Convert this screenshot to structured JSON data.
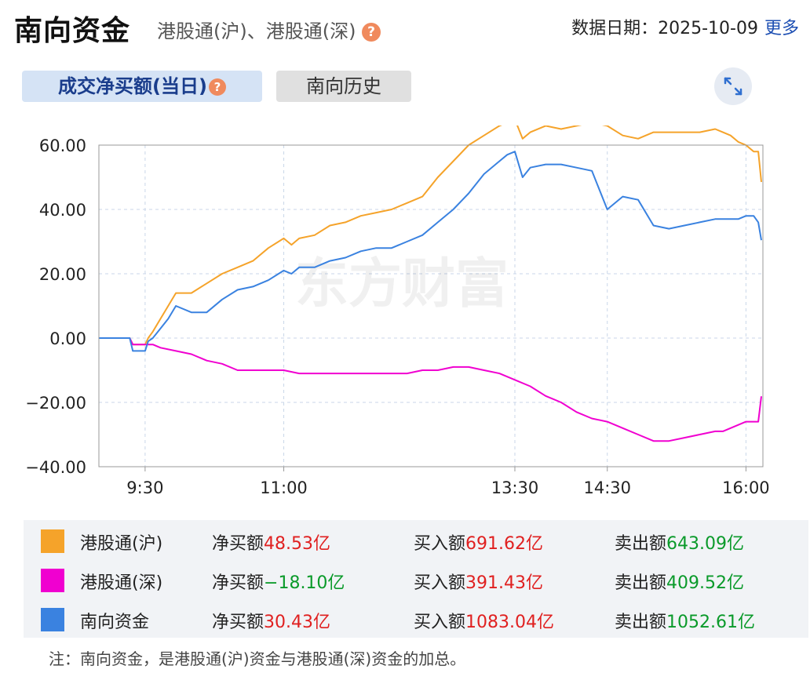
{
  "header": {
    "title": "南向资金",
    "subtitle": "港股通(沪)、港股通(深)",
    "date_label": "数据日期：",
    "date_value": "2025-10-09",
    "more": "更多"
  },
  "tabs": [
    {
      "label": "成交净买额(当日)",
      "active": true
    },
    {
      "label": "南向历史",
      "active": false
    }
  ],
  "icons": {
    "help": "?",
    "expand": "expand-icon"
  },
  "chart_data": {
    "type": "line",
    "watermark": "东方财富",
    "ylim": [
      -40,
      60
    ],
    "yticks": [
      "60.00",
      "40.00",
      "20.00",
      "0.00",
      "−20.00",
      "−40.00"
    ],
    "ytick_values": [
      60,
      40,
      20,
      0,
      -20,
      -40
    ],
    "xtick_labels": [
      "9:30",
      "11:00",
      "13:30",
      "14:30",
      "16:00"
    ],
    "xtick_minutes": [
      570,
      660,
      810,
      870,
      960
    ],
    "xlim_minutes": [
      540,
      971
    ],
    "grid": true,
    "series": [
      {
        "name": "港股通(沪)",
        "color": "#f5a32a",
        "x": [
          540,
          560,
          562,
          570,
          572,
          575,
          580,
          585,
          590,
          600,
          610,
          620,
          630,
          640,
          650,
          660,
          665,
          670,
          680,
          690,
          700,
          710,
          720,
          730,
          740,
          750,
          760,
          770,
          780,
          790,
          800,
          805,
          810,
          815,
          820,
          830,
          840,
          850,
          860,
          870,
          880,
          890,
          900,
          910,
          920,
          930,
          940,
          945,
          950,
          955,
          960,
          965,
          968,
          970
        ],
        "y": [
          0,
          0,
          -2,
          -2,
          0,
          2,
          6,
          10,
          14,
          14,
          17,
          20,
          22,
          24,
          28,
          31,
          29,
          31,
          32,
          35,
          36,
          38,
          39,
          40,
          42,
          44,
          50,
          55,
          60,
          63,
          66,
          67,
          68,
          62,
          64,
          66,
          65,
          66,
          67,
          66,
          63,
          62,
          64,
          64,
          64,
          64,
          65,
          64,
          63,
          61,
          60,
          58,
          58,
          48.53
        ]
      },
      {
        "name": "港股通(深)",
        "color": "#f000d0",
        "x": [
          540,
          560,
          562,
          570,
          575,
          580,
          590,
          600,
          610,
          620,
          630,
          640,
          650,
          660,
          670,
          680,
          690,
          700,
          710,
          720,
          730,
          740,
          750,
          760,
          770,
          780,
          790,
          800,
          810,
          820,
          830,
          840,
          850,
          860,
          870,
          880,
          890,
          900,
          910,
          920,
          930,
          940,
          945,
          950,
          955,
          960,
          965,
          968,
          970
        ],
        "y": [
          0,
          0,
          -2,
          -2,
          -2,
          -3,
          -4,
          -5,
          -7,
          -8,
          -10,
          -10,
          -10,
          -10,
          -11,
          -11,
          -11,
          -11,
          -11,
          -11,
          -11,
          -11,
          -10,
          -10,
          -9,
          -9,
          -10,
          -11,
          -13,
          -15,
          -18,
          -20,
          -23,
          -25,
          -26,
          -28,
          -30,
          -32,
          -32,
          -31,
          -30,
          -29,
          -29,
          -28,
          -27,
          -26,
          -26,
          -26,
          -18.1
        ]
      },
      {
        "name": "南向资金",
        "color": "#3a82e0",
        "x": [
          540,
          560,
          562,
          570,
          572,
          575,
          580,
          585,
          590,
          600,
          610,
          620,
          630,
          640,
          650,
          660,
          665,
          670,
          680,
          690,
          700,
          710,
          720,
          730,
          740,
          750,
          760,
          770,
          780,
          790,
          800,
          805,
          810,
          815,
          820,
          830,
          840,
          850,
          860,
          870,
          880,
          890,
          900,
          910,
          920,
          930,
          940,
          945,
          950,
          955,
          960,
          965,
          968,
          970
        ],
        "y": [
          0,
          0,
          -4,
          -4,
          -1,
          0,
          3,
          6,
          10,
          8,
          8,
          12,
          15,
          16,
          18,
          21,
          20,
          22,
          22,
          24,
          25,
          27,
          28,
          28,
          30,
          32,
          36,
          40,
          45,
          51,
          55,
          57,
          58,
          50,
          53,
          54,
          54,
          53,
          52,
          40,
          44,
          43,
          35,
          34,
          35,
          36,
          37,
          37,
          37,
          37,
          38,
          38,
          36,
          30.43
        ]
      }
    ]
  },
  "legend": [
    {
      "name": "港股通(沪)",
      "color": "#f5a32a",
      "net_label": "净买额",
      "net": "48.53亿",
      "net_color": "red",
      "buy_label": "买入额",
      "buy": "691.62亿",
      "sell_label": "卖出额",
      "sell": "643.09亿"
    },
    {
      "name": "港股通(深)",
      "color": "#f000d0",
      "net_label": "净买额",
      "net": "−18.10亿",
      "net_color": "green",
      "buy_label": "买入额",
      "buy": "391.43亿",
      "sell_label": "卖出额",
      "sell": "409.52亿"
    },
    {
      "name": "南向资金",
      "color": "#3a82e0",
      "net_label": "净买额",
      "net": "30.43亿",
      "net_color": "red",
      "buy_label": "买入额",
      "buy": "1083.04亿",
      "sell_label": "卖出额",
      "sell": "1052.61亿"
    }
  ],
  "note": "注：南向资金，是港股通(沪)资金与港股通(深)资金的加总。"
}
